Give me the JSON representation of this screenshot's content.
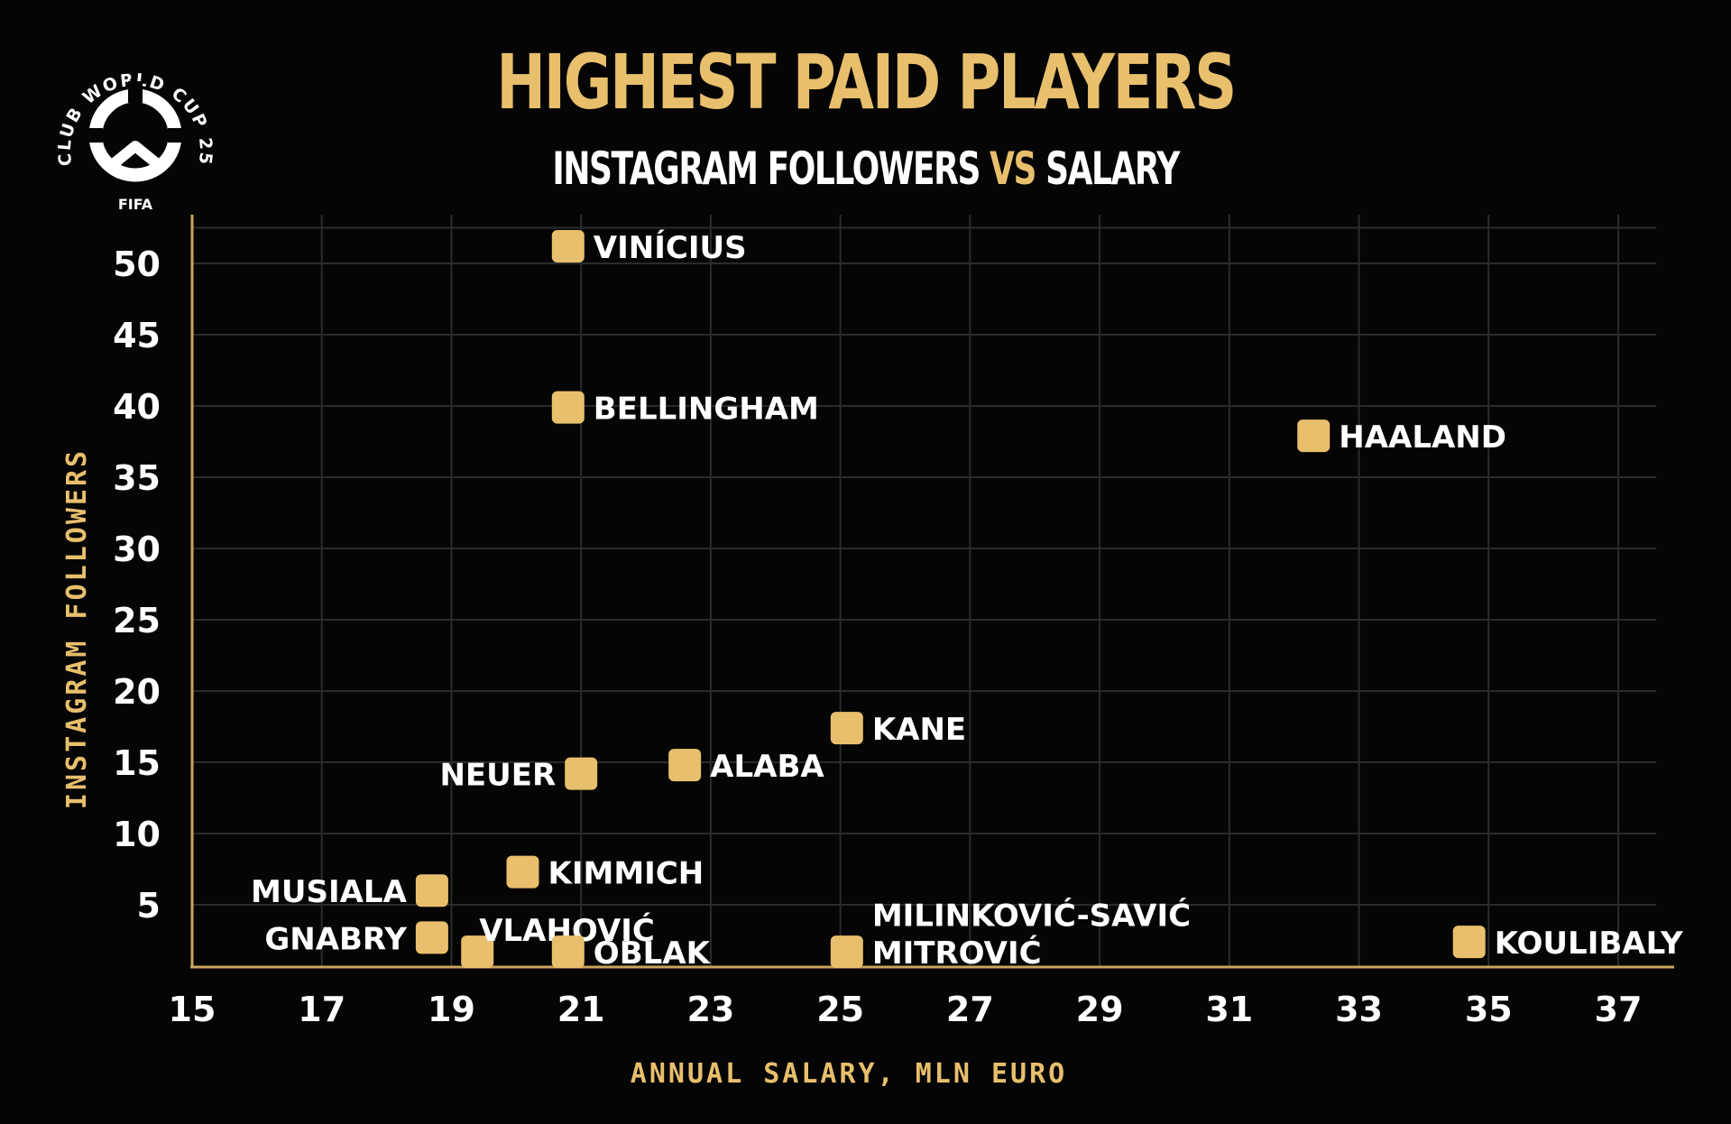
{
  "header": {
    "title": "HIGHEST PAID PLAYERS",
    "subtitle_left": "INSTAGRAM FOLLOWERS",
    "subtitle_vs": "VS",
    "subtitle_right": "SALARY"
  },
  "logo": {
    "text": "CLUB WORLD CUP 25",
    "org": "FIFA"
  },
  "chart_data": {
    "type": "scatter",
    "title": "HIGHEST PAID PLAYERS",
    "subtitle": "INSTAGRAM FOLLOWERS VS SALARY",
    "xlabel": "ANNUAL SALARY, MLN EURO",
    "ylabel": "INSTAGRAM FOLLOWERS",
    "xlim": [
      15,
      37
    ],
    "ylim": [
      0,
      50
    ],
    "xticks": [
      15,
      17,
      19,
      21,
      23,
      25,
      27,
      29,
      31,
      33,
      35,
      37
    ],
    "yticks": [
      5,
      10,
      15,
      20,
      25,
      30,
      35,
      40,
      45,
      50
    ],
    "grid": true,
    "marker_color": "#e8bf6c",
    "points": [
      {
        "label": "VINÍCIUS",
        "x": 20.8,
        "y": 51.2
      },
      {
        "label": "BELLINGHAM",
        "x": 20.8,
        "y": 39.9
      },
      {
        "label": "HAALAND",
        "x": 32.3,
        "y": 37.9
      },
      {
        "label": "KANE",
        "x": 25.1,
        "y": 17.4
      },
      {
        "label": "ALABA",
        "x": 22.6,
        "y": 14.8
      },
      {
        "label": "NEUER",
        "x": 21.0,
        "y": 14.2
      },
      {
        "label": "KIMMICH",
        "x": 20.1,
        "y": 7.3
      },
      {
        "label": "MUSIALA",
        "x": 18.7,
        "y": 6.0
      },
      {
        "label": "GNABRY",
        "x": 18.7,
        "y": 2.7
      },
      {
        "label": "VLAHOVIĆ",
        "x": 19.4,
        "y": 1.7
      },
      {
        "label": "OBLAK",
        "x": 20.8,
        "y": 1.7
      },
      {
        "label": "MILINKOVIĆ-SAVIĆ",
        "x": 25.1,
        "y": 1.8
      },
      {
        "label": "MITROVIĆ",
        "x": 25.1,
        "y": 1.7
      },
      {
        "label": "KOULIBALY",
        "x": 34.7,
        "y": 2.4
      }
    ]
  }
}
